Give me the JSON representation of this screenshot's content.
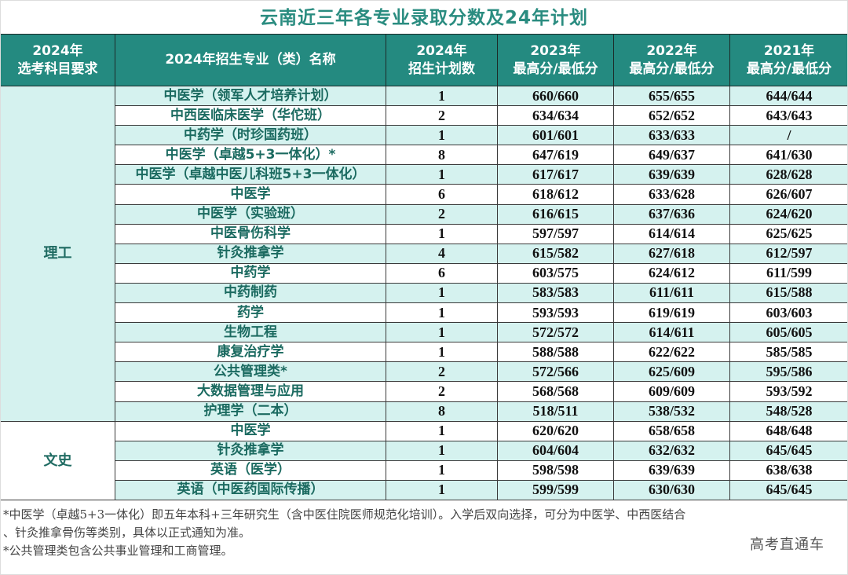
{
  "title": "云南近三年各专业录取分数及24年计划",
  "headers": {
    "subject_req": [
      "2024年",
      "选考科目要求"
    ],
    "major": "2024年招生专业（类）名称",
    "plan": [
      "2024年",
      "招生计划数"
    ],
    "y2023": [
      "2023年",
      "最高分/最低分"
    ],
    "y2022": [
      "2022年",
      "最高分/最低分"
    ],
    "y2021": [
      "2021年",
      "最高分/最低分"
    ]
  },
  "groups": [
    {
      "label": "理工",
      "rows": [
        {
          "major": "中医学（领军人才培养计划）",
          "plan": "1",
          "s2023": "660/660",
          "s2022": "655/655",
          "s2021": "644/644"
        },
        {
          "major": "中西医临床医学（华佗班）",
          "plan": "2",
          "s2023": "634/634",
          "s2022": "652/652",
          "s2021": "643/643"
        },
        {
          "major": "中药学（时珍国药班）",
          "plan": "1",
          "s2023": "601/601",
          "s2022": "633/633",
          "s2021": "/"
        },
        {
          "major": "中医学（卓越5+3一体化）*",
          "plan": "8",
          "s2023": "647/619",
          "s2022": "649/637",
          "s2021": "641/630"
        },
        {
          "major": "中医学（卓越中医儿科班5+3一体化）",
          "plan": "1",
          "s2023": "617/617",
          "s2022": "639/639",
          "s2021": "628/628"
        },
        {
          "major": "中医学",
          "plan": "6",
          "s2023": "618/612",
          "s2022": "633/628",
          "s2021": "626/607"
        },
        {
          "major": "中医学（实验班）",
          "plan": "2",
          "s2023": "616/615",
          "s2022": "637/636",
          "s2021": "624/620"
        },
        {
          "major": "中医骨伤科学",
          "plan": "1",
          "s2023": "597/597",
          "s2022": "614/614",
          "s2021": "625/625"
        },
        {
          "major": "针灸推拿学",
          "plan": "4",
          "s2023": "615/582",
          "s2022": "627/618",
          "s2021": "612/597"
        },
        {
          "major": "中药学",
          "plan": "6",
          "s2023": "603/575",
          "s2022": "624/612",
          "s2021": "611/599"
        },
        {
          "major": "中药制药",
          "plan": "1",
          "s2023": "583/583",
          "s2022": "611/611",
          "s2021": "615/588"
        },
        {
          "major": "药学",
          "plan": "1",
          "s2023": "593/593",
          "s2022": "619/619",
          "s2021": "603/603"
        },
        {
          "major": "生物工程",
          "plan": "1",
          "s2023": "572/572",
          "s2022": "614/611",
          "s2021": "605/605"
        },
        {
          "major": "康复治疗学",
          "plan": "1",
          "s2023": "588/588",
          "s2022": "622/622",
          "s2021": "585/585"
        },
        {
          "major": "公共管理类*",
          "plan": "2",
          "s2023": "572/566",
          "s2022": "625/609",
          "s2021": "595/586"
        },
        {
          "major": "大数据管理与应用",
          "plan": "2",
          "s2023": "568/568",
          "s2022": "609/609",
          "s2021": "593/592"
        },
        {
          "major": "护理学（二本）",
          "plan": "8",
          "s2023": "518/511",
          "s2022": "538/532",
          "s2021": "548/528"
        }
      ]
    },
    {
      "label": "文史",
      "rows": [
        {
          "major": "中医学",
          "plan": "1",
          "s2023": "620/620",
          "s2022": "658/658",
          "s2021": "648/648"
        },
        {
          "major": "针灸推拿学",
          "plan": "1",
          "s2023": "604/604",
          "s2022": "632/632",
          "s2021": "645/645"
        },
        {
          "major": "英语（医学）",
          "plan": "1",
          "s2023": "598/598",
          "s2022": "639/639",
          "s2021": "638/638"
        },
        {
          "major": "英语（中医药国际传播）",
          "plan": "1",
          "s2023": "599/599",
          "s2022": "630/630",
          "s2021": "645/645"
        }
      ]
    }
  ],
  "notes": [
    "*中医学（卓越5+3一体化）即五年本科+三年研究生（含中医住院医师规范化培训）。入学后双向选择，可分为中医学、中西医结合",
    "、针灸推拿骨伤等类别，具体以正式通知为准。",
    "*公共管理类包含公共事业管理和工商管理。"
  ],
  "watermark": "高考直通车",
  "colors": {
    "header_bg": "#248a80",
    "title": "#2a8c80",
    "row_alt": "#d5f2ef",
    "major_text": "#1b6a60"
  }
}
